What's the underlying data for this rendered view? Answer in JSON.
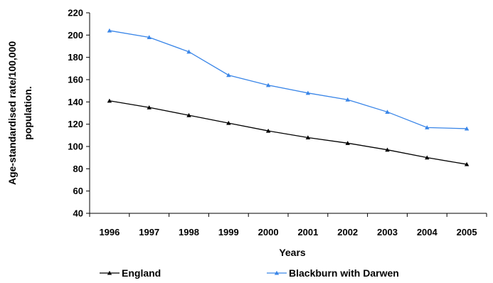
{
  "chart_data": {
    "type": "line",
    "categories": [
      "1996",
      "1997",
      "1998",
      "1999",
      "2000",
      "2001",
      "2002",
      "2003",
      "2004",
      "2005"
    ],
    "series": [
      {
        "name": "England",
        "color": "#000000",
        "marker": "triangle",
        "values": [
          141,
          135,
          128,
          121,
          114,
          108,
          103,
          97,
          90,
          84
        ]
      },
      {
        "name": "Blackburn with Darwen",
        "color": "#3a86e8",
        "marker": "triangle",
        "values": [
          204,
          198,
          185,
          164,
          155,
          148,
          142,
          131,
          117,
          116
        ]
      }
    ],
    "xlabel": "Years",
    "ylabel_lines": [
      "Age-standardised rate/100,000",
      "population."
    ],
    "ylim": [
      40,
      220
    ],
    "yticks": [
      40,
      60,
      80,
      100,
      120,
      140,
      160,
      180,
      200,
      220
    ],
    "grid": false,
    "legend_position": "bottom"
  }
}
